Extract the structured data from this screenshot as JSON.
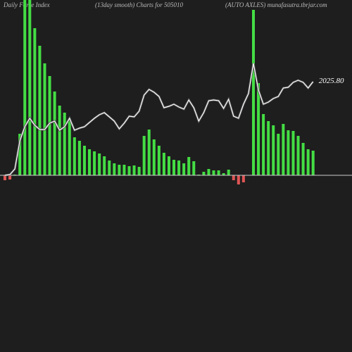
{
  "chart_data": {
    "type": "bar",
    "title_left": "Daily Force  Index",
    "title_center": "(13day smooth) Charts for 505010",
    "title_right": "(AUTO AXLES) munafasutra.tbrjar.com",
    "ylim": [
      -251,
      249
    ],
    "y2lim": [
      105.8,
      2605.8
    ],
    "positive_color": "#44dd44",
    "negative_color": "#e05555",
    "line_color": "#ffffff",
    "values": [
      -7,
      -6,
      1,
      59,
      260,
      260,
      209,
      184,
      159,
      141,
      119,
      99,
      89,
      81,
      54,
      49,
      42,
      37,
      34,
      31,
      27,
      21,
      17,
      15,
      15,
      13,
      14,
      12,
      56,
      65,
      51,
      42,
      32,
      27,
      22,
      21,
      17,
      26,
      20,
      1,
      5,
      9,
      7,
      7,
      3,
      8,
      -7,
      -13,
      -10,
      0,
      235,
      131,
      87,
      77,
      71,
      59,
      73,
      64,
      63,
      56,
      46,
      37,
      35
    ],
    "line": {
      "axis": "y2",
      "values": [
        1360.8,
        1365.8,
        1405.8,
        1605.8,
        1705.8,
        1765.8,
        1715.8,
        1685.8,
        1685.8,
        1730.8,
        1745.8,
        1680.8,
        1705.8,
        1765.8,
        1680.8,
        1695.8,
        1705.8,
        1735.8,
        1765.8,
        1790.8,
        1805.8,
        1775.8,
        1745.8,
        1690.8,
        1730.8,
        1780.8,
        1775.8,
        1815.8,
        1930.8,
        1970.8,
        1950.8,
        1920.8,
        1840.8,
        1850.8,
        1865.8,
        1845.8,
        1830.8,
        1895.8,
        1840.8,
        1745.8,
        1805.8,
        1890.8,
        1895.8,
        1890.8,
        1835.8,
        1900.8,
        1780.8,
        1765.8,
        1865.8,
        1940.8,
        2155.8,
        1965.8,
        1865.8,
        1880.8,
        1905.8,
        1920.8,
        1980.8,
        1985.8,
        2020.8,
        2035.8,
        2020.8,
        1980.8,
        2025.8
      ],
      "end_label": "2025.80"
    }
  }
}
